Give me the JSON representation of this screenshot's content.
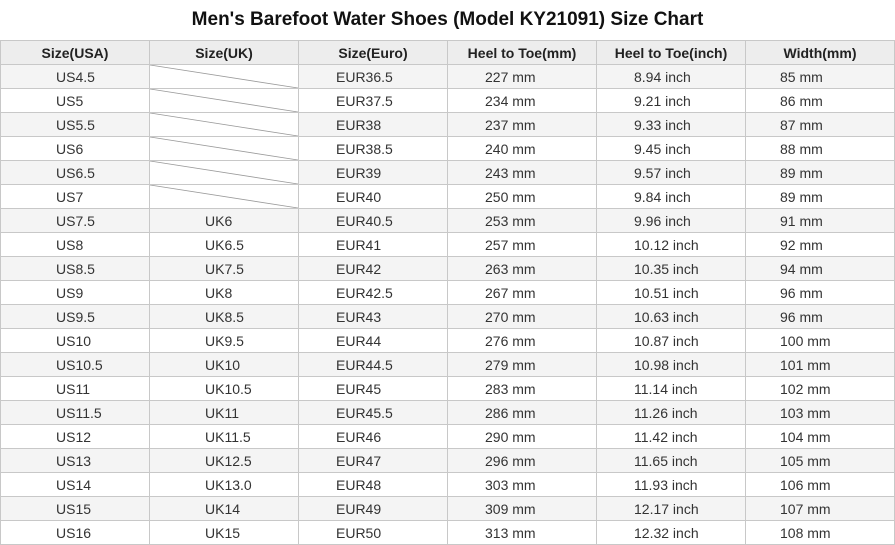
{
  "title": "Men's Barefoot Water Shoes (Model KY21091) Size Chart",
  "headers": [
    "Size(USA)",
    "Size(UK)",
    "Size(Euro)",
    "Heel to Toe(mm)",
    "Heel to Toe(inch)",
    "Width(mm)"
  ],
  "rows": [
    {
      "usa": "US4.5",
      "uk": "",
      "eur": "EUR36.5",
      "mm": "227 mm",
      "inch": "8.94 inch",
      "width": "85 mm"
    },
    {
      "usa": "US5",
      "uk": "",
      "eur": "EUR37.5",
      "mm": "234 mm",
      "inch": "9.21 inch",
      "width": "86 mm"
    },
    {
      "usa": "US5.5",
      "uk": "",
      "eur": "EUR38",
      "mm": "237 mm",
      "inch": "9.33 inch",
      "width": "87 mm"
    },
    {
      "usa": "US6",
      "uk": "",
      "eur": "EUR38.5",
      "mm": "240 mm",
      "inch": "9.45 inch",
      "width": "88 mm"
    },
    {
      "usa": "US6.5",
      "uk": "",
      "eur": "EUR39",
      "mm": "243 mm",
      "inch": "9.57 inch",
      "width": "89 mm"
    },
    {
      "usa": "US7",
      "uk": "",
      "eur": "EUR40",
      "mm": "250 mm",
      "inch": "9.84 inch",
      "width": "89 mm"
    },
    {
      "usa": "US7.5",
      "uk": "UK6",
      "eur": "EUR40.5",
      "mm": "253 mm",
      "inch": "9.96 inch",
      "width": "91 mm"
    },
    {
      "usa": "US8",
      "uk": "UK6.5",
      "eur": "EUR41",
      "mm": "257 mm",
      "inch": "10.12 inch",
      "width": "92 mm"
    },
    {
      "usa": "US8.5",
      "uk": "UK7.5",
      "eur": "EUR42",
      "mm": "263 mm",
      "inch": "10.35 inch",
      "width": "94 mm"
    },
    {
      "usa": "US9",
      "uk": "UK8",
      "eur": "EUR42.5",
      "mm": "267 mm",
      "inch": "10.51 inch",
      "width": "96 mm"
    },
    {
      "usa": "US9.5",
      "uk": "UK8.5",
      "eur": "EUR43",
      "mm": "270 mm",
      "inch": "10.63 inch",
      "width": "96 mm"
    },
    {
      "usa": "US10",
      "uk": "UK9.5",
      "eur": "EUR44",
      "mm": "276 mm",
      "inch": "10.87 inch",
      "width": "100 mm"
    },
    {
      "usa": "US10.5",
      "uk": "UK10",
      "eur": "EUR44.5",
      "mm": "279 mm",
      "inch": "10.98 inch",
      "width": "101 mm"
    },
    {
      "usa": "US11",
      "uk": "UK10.5",
      "eur": "EUR45",
      "mm": "283 mm",
      "inch": "11.14 inch",
      "width": "102 mm"
    },
    {
      "usa": "US11.5",
      "uk": "UK11",
      "eur": "EUR45.5",
      "mm": "286 mm",
      "inch": "11.26 inch",
      "width": "103 mm"
    },
    {
      "usa": "US12",
      "uk": "UK11.5",
      "eur": "EUR46",
      "mm": "290 mm",
      "inch": "11.42 inch",
      "width": "104 mm"
    },
    {
      "usa": "US13",
      "uk": "UK12.5",
      "eur": "EUR47",
      "mm": "296 mm",
      "inch": "11.65 inch",
      "width": "105 mm"
    },
    {
      "usa": "US14",
      "uk": "UK13.0",
      "eur": "EUR48",
      "mm": "303 mm",
      "inch": "11.93 inch",
      "width": "106 mm"
    },
    {
      "usa": "US15",
      "uk": "UK14",
      "eur": "EUR49",
      "mm": "309 mm",
      "inch": "12.17 inch",
      "width": "107 mm"
    },
    {
      "usa": "US16",
      "uk": "UK15",
      "eur": "EUR50",
      "mm": "313 mm",
      "inch": "12.32 inch",
      "width": "108 mm"
    }
  ]
}
